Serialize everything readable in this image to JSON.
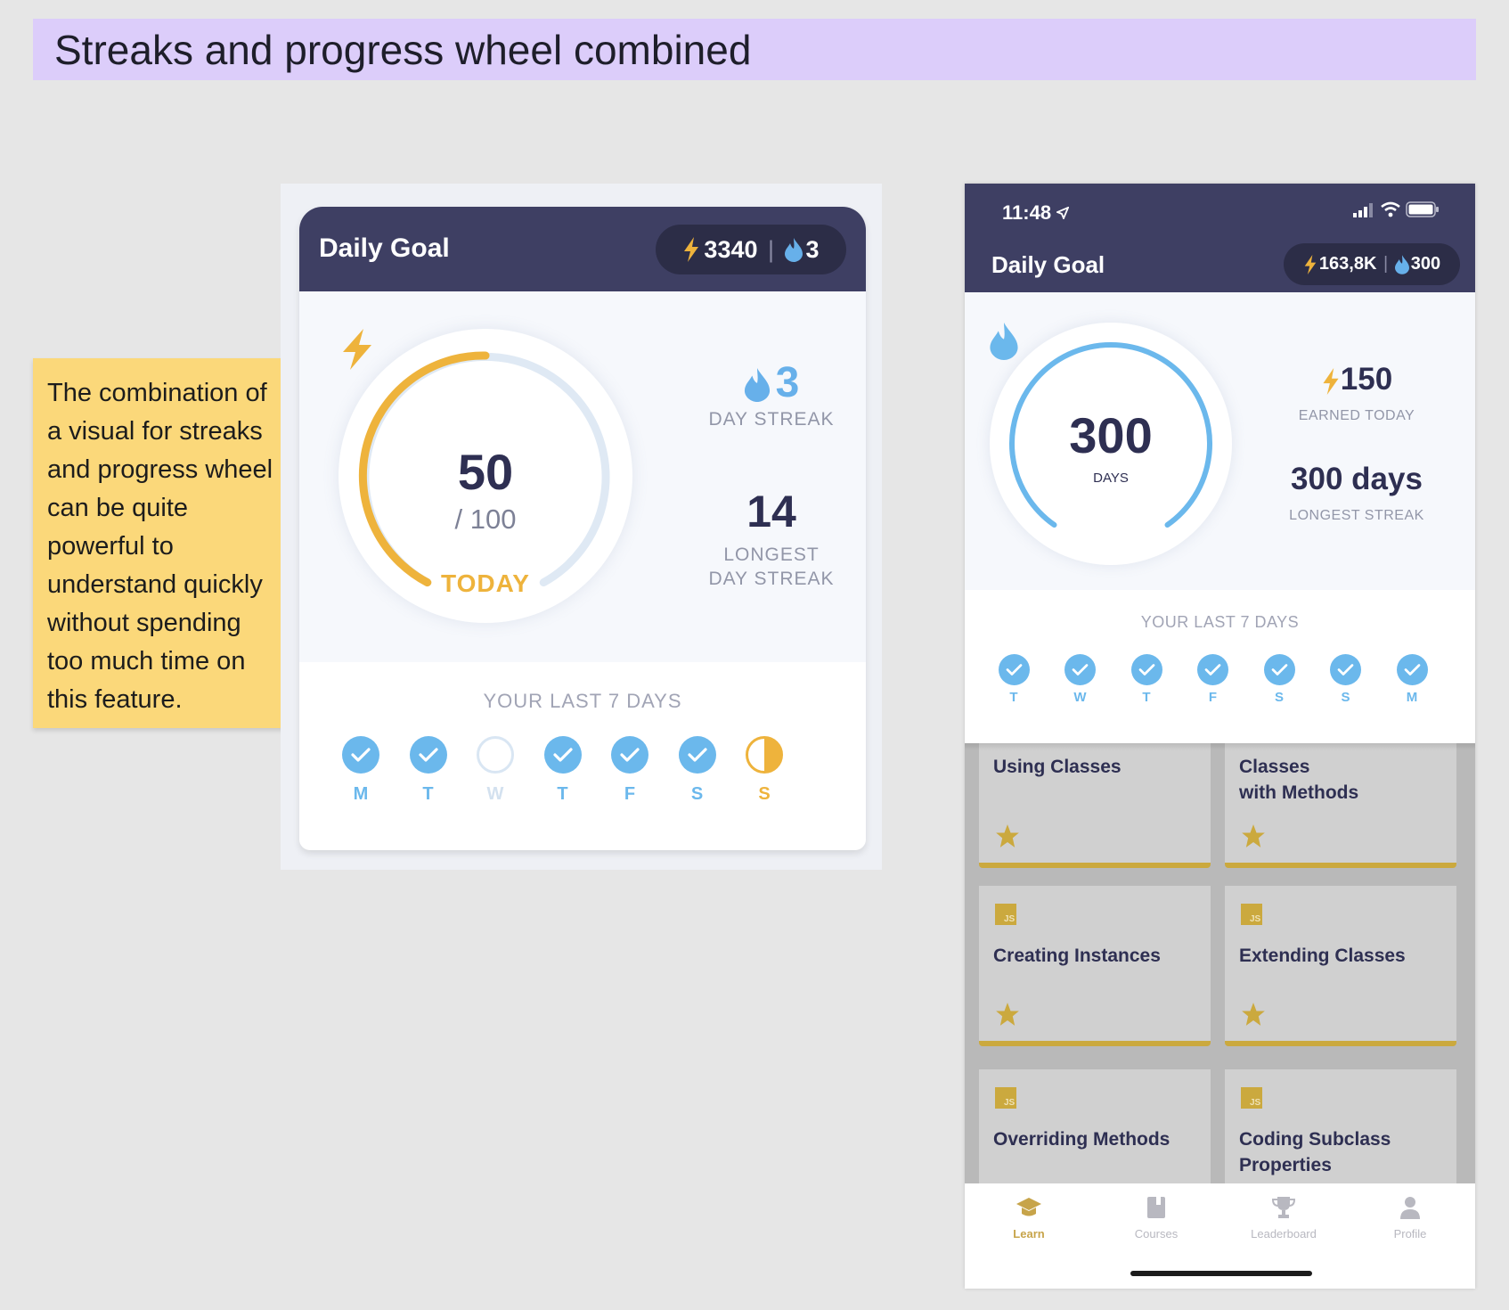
{
  "banner": {
    "title": "Streaks and progress wheel combined"
  },
  "note": {
    "lines": [
      "The combination of",
      "a visual for streaks",
      "and progress wheel",
      "can be quite",
      "powerful to",
      "understand quickly",
      "without spending",
      "too much time on",
      "this feature."
    ]
  },
  "left_card": {
    "title": "Daily Goal",
    "xp": "3340",
    "streak": "3",
    "wheel": {
      "value": "50",
      "of": "/ 100",
      "label": "TODAY",
      "progress": 0.5
    },
    "stat_streak": {
      "value": "3",
      "label": "DAY STREAK"
    },
    "stat_longest": {
      "value": "14",
      "line1": "LONGEST",
      "line2": "DAY STREAK"
    },
    "last7_title": "YOUR LAST 7 DAYS",
    "days": [
      {
        "label": "M",
        "state": "done"
      },
      {
        "label": "T",
        "state": "done"
      },
      {
        "label": "W",
        "state": "missed"
      },
      {
        "label": "T",
        "state": "done"
      },
      {
        "label": "F",
        "state": "done"
      },
      {
        "label": "S",
        "state": "done"
      },
      {
        "label": "S",
        "state": "partial"
      }
    ],
    "colors": {
      "header": "#3e3f63",
      "accent": "#eeb33c",
      "done": "#6bb8ec"
    }
  },
  "phone": {
    "time": "11:48",
    "title": "Daily Goal",
    "xp": "163,8K",
    "streak": "300",
    "wheel": {
      "value": "300",
      "label": "DAYS"
    },
    "stat_earned": {
      "value": "150",
      "label": "EARNED TODAY"
    },
    "stat_longest": {
      "value": "300 days",
      "label": "LONGEST STREAK"
    },
    "last7_title": "YOUR LAST 7 DAYS",
    "days": [
      {
        "label": "T",
        "state": "done"
      },
      {
        "label": "W",
        "state": "done"
      },
      {
        "label": "T",
        "state": "done"
      },
      {
        "label": "F",
        "state": "done"
      },
      {
        "label": "S",
        "state": "done"
      },
      {
        "label": "S",
        "state": "done"
      },
      {
        "label": "M",
        "state": "done"
      }
    ],
    "courses": [
      {
        "line1": "Using Classes",
        "line2": ""
      },
      {
        "line1": "Classes",
        "line2": "with Methods"
      },
      {
        "line1": "Creating Instances",
        "line2": ""
      },
      {
        "line1": "Extending Classes",
        "line2": ""
      },
      {
        "line1": "Overriding Methods",
        "line2": ""
      },
      {
        "line1": "Coding Subclass",
        "line2": "Properties"
      }
    ],
    "tabs": [
      {
        "label": "Learn",
        "icon": "graduation-cap-icon"
      },
      {
        "label": "Courses",
        "icon": "book-icon"
      },
      {
        "label": "Leaderboard",
        "icon": "trophy-icon"
      },
      {
        "label": "Profile",
        "icon": "person-icon"
      }
    ]
  }
}
